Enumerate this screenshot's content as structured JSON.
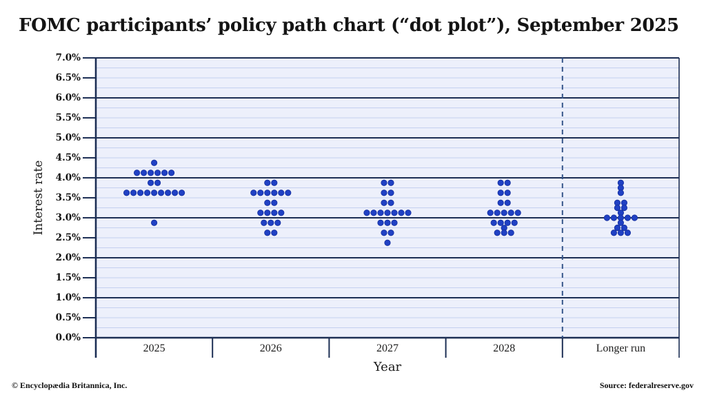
{
  "title": "FOMC participants’ policy path chart (“dot plot”), September 2025",
  "y_axis": {
    "label": "Interest rate",
    "tick_labels": [
      "7.0%",
      "6.5%",
      "6.0%",
      "5.5%",
      "5.0%",
      "4.5%",
      "4.0%",
      "3.5%",
      "3.0%",
      "2.5%",
      "2.0%",
      "1.5%",
      "1.0%",
      "0.5%",
      "0.0%"
    ],
    "min": 0,
    "max": 7,
    "tick_step": 0.5,
    "minor_grid_step": 0.25,
    "major_grid_step": 1.0
  },
  "x_axis": {
    "label": "Year",
    "categories": [
      "2025",
      "2026",
      "2027",
      "2028",
      "Longer run"
    ]
  },
  "footer": {
    "copyright": "© Encyclopædia Britannica, Inc.",
    "source": "Source: federalreserve.gov"
  },
  "colors": {
    "dot": "#2041c4",
    "dot_border": "#16309e",
    "major_line": "#1c2e54",
    "minor_line": "#c4cfef",
    "plot_bg": "#edf0fb",
    "dashed_line": "#35568a",
    "text": "#161616"
  },
  "chart_data": {
    "type": "scatter",
    "subtype": "fomc-dot-plot",
    "title": "FOMC participants’ policy path chart (“dot plot”), September 2025",
    "xlabel": "Year",
    "ylabel": "Interest rate",
    "ylim": [
      0,
      7
    ],
    "y_tick_step": 0.5,
    "grid": "major horizontal lines every 1.0%, minor lines every 0.25%",
    "legend": "none",
    "categories": [
      "2025",
      "2026",
      "2027",
      "2028",
      "Longer run"
    ],
    "dashed_separator_before": "Longer run",
    "dots_per_category": 19,
    "series": [
      {
        "category": "2025",
        "dots": [
          {
            "rate": 4.375,
            "count": 1
          },
          {
            "rate": 4.125,
            "count": 6
          },
          {
            "rate": 3.875,
            "count": 2
          },
          {
            "rate": 3.625,
            "count": 9
          },
          {
            "rate": 2.875,
            "count": 1
          }
        ]
      },
      {
        "category": "2026",
        "dots": [
          {
            "rate": 3.875,
            "count": 2
          },
          {
            "rate": 3.625,
            "count": 6
          },
          {
            "rate": 3.375,
            "count": 2
          },
          {
            "rate": 3.125,
            "count": 4
          },
          {
            "rate": 2.875,
            "count": 3
          },
          {
            "rate": 2.625,
            "count": 2
          }
        ]
      },
      {
        "category": "2027",
        "dots": [
          {
            "rate": 3.875,
            "count": 2
          },
          {
            "rate": 3.625,
            "count": 2
          },
          {
            "rate": 3.375,
            "count": 2
          },
          {
            "rate": 3.125,
            "count": 7
          },
          {
            "rate": 2.875,
            "count": 3
          },
          {
            "rate": 2.625,
            "count": 2
          },
          {
            "rate": 2.375,
            "count": 1
          }
        ]
      },
      {
        "category": "2028",
        "dots": [
          {
            "rate": 3.875,
            "count": 2
          },
          {
            "rate": 3.625,
            "count": 2
          },
          {
            "rate": 3.375,
            "count": 2
          },
          {
            "rate": 3.125,
            "count": 5
          },
          {
            "rate": 2.875,
            "count": 5,
            "display_rows": [
              4,
              1
            ]
          },
          {
            "rate": 2.625,
            "count": 3
          }
        ]
      },
      {
        "category": "Longer run",
        "dots": [
          {
            "rate": 3.875,
            "count": 1
          },
          {
            "rate": 3.75,
            "count": 1
          },
          {
            "rate": 3.625,
            "count": 1
          },
          {
            "rate": 3.375,
            "count": 2
          },
          {
            "rate": 3.25,
            "count": 2
          },
          {
            "rate": 3.125,
            "count": 1
          },
          {
            "rate": 3.0,
            "count": 5
          },
          {
            "rate": 2.875,
            "count": 1
          },
          {
            "rate": 2.75,
            "count": 2
          },
          {
            "rate": 2.625,
            "count": 3
          }
        ]
      }
    ]
  }
}
